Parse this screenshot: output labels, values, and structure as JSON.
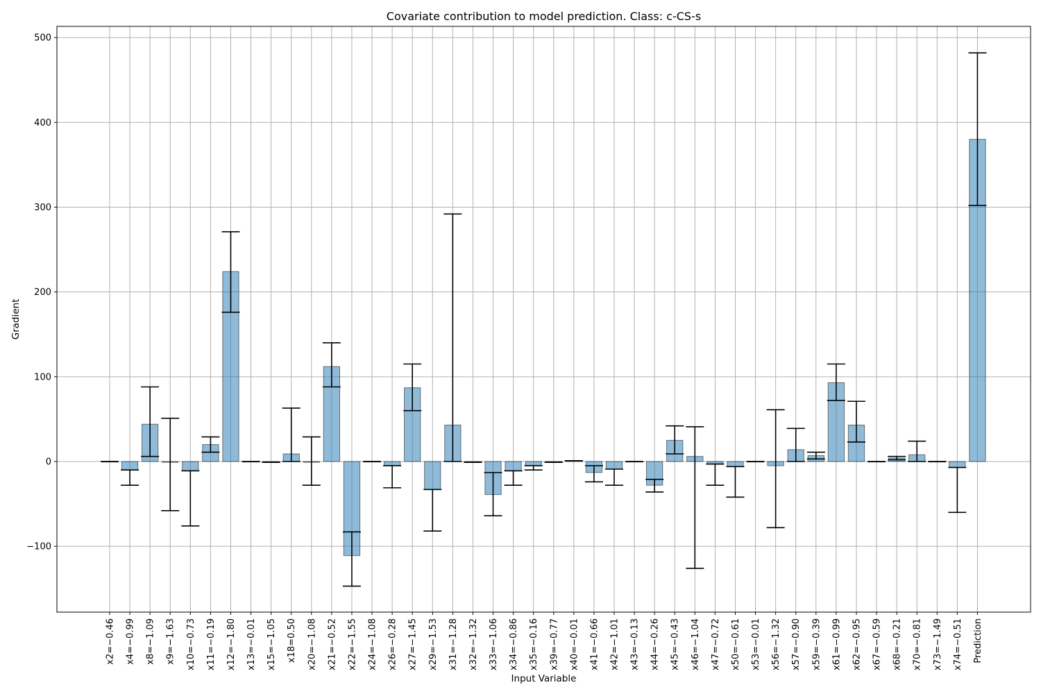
{
  "chart_data": {
    "type": "bar",
    "title": "Covariate contribution to model prediction. Class: c-CS-s",
    "xlabel": "Input Variable",
    "ylabel": "Gradient",
    "ylim": [
      -178,
      514
    ],
    "yticks": [
      -100,
      0,
      100,
      200,
      300,
      400,
      500
    ],
    "ytick_labels": [
      "−100",
      "0",
      "100",
      "200",
      "300",
      "400",
      "500"
    ],
    "grid": true,
    "categories": [
      "x2=−0.46",
      "x4=−0.99",
      "x8=−1.09",
      "x9=−1.63",
      "x10=−0.73",
      "x11=−0.19",
      "x12=−1.80",
      "x13=−0.01",
      "x15=−1.05",
      "x18=0.50",
      "x20=−1.08",
      "x21=−0.52",
      "x22=−1.55",
      "x24=−1.08",
      "x26=−0.28",
      "x27=−1.45",
      "x29=−1.53",
      "x31=−1.28",
      "x32=−1.32",
      "x33=−1.06",
      "x34=−0.86",
      "x35=−0.16",
      "x39=−0.77",
      "x40=−0.01",
      "x41=−0.66",
      "x42=−1.01",
      "x43=−0.13",
      "x44=−0.26",
      "x45=−0.43",
      "x46=−1.04",
      "x47=−0.72",
      "x50=−0.61",
      "x53=−0.01",
      "x56=−1.32",
      "x57=−0.90",
      "x59=−0.39",
      "x61=−0.99",
      "x62=−0.95",
      "x67=−0.59",
      "x68=−0.21",
      "x70=−0.81",
      "x73=−1.49",
      "x74=−0.51",
      "Prediction"
    ],
    "values": [
      0,
      -10,
      44,
      -1,
      -11,
      20,
      224,
      0,
      -1,
      9,
      -1,
      112,
      -111,
      0,
      -5,
      87,
      -33,
      43,
      -1,
      -39,
      -11,
      -5,
      -1,
      1,
      -13,
      -9,
      0,
      -28,
      25,
      6,
      -3,
      -6,
      0,
      -5,
      14,
      7,
      93,
      43,
      0,
      4,
      8,
      0,
      -7,
      380
    ],
    "error_low": [
      0,
      -28,
      6,
      -58,
      -76,
      11,
      176,
      0,
      -1,
      0,
      -28,
      88,
      -147,
      0,
      -31,
      60,
      -82,
      0,
      -1,
      -64,
      -28,
      -10,
      -1,
      1,
      -24,
      -28,
      0,
      -36,
      9,
      -126,
      -28,
      -42,
      0,
      -78,
      0,
      3,
      72,
      23,
      0,
      2,
      0,
      0,
      -60,
      302
    ],
    "error_high": [
      0,
      -10,
      88,
      51,
      -11,
      29,
      271,
      0,
      -1,
      63,
      29,
      140,
      -83,
      0,
      -5,
      115,
      -33,
      292,
      -1,
      -13,
      -11,
      -5,
      -1,
      1,
      -5,
      -9,
      0,
      -21,
      42,
      41,
      -3,
      -6,
      0,
      61,
      39,
      11,
      115,
      71,
      0,
      6,
      24,
      0,
      -7,
      482
    ]
  }
}
